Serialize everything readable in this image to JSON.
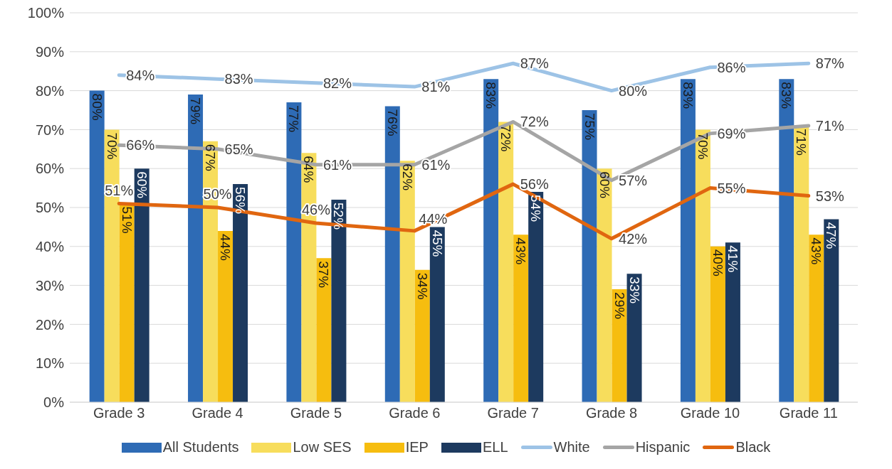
{
  "chart_data": {
    "type": "bar",
    "categories": [
      "Grade 3",
      "Grade 4",
      "Grade 5",
      "Grade 6",
      "Grade 7",
      "Grade 8",
      "Grade 10",
      "Grade 11"
    ],
    "series": [
      {
        "name": "All Students",
        "color": "#2e6bb5",
        "values": [
          80,
          79,
          77,
          76,
          83,
          75,
          83,
          83
        ],
        "value_labels": [
          "80%",
          "79%",
          "77%",
          "76%",
          "83%",
          "75%",
          "83%",
          "83%"
        ]
      },
      {
        "name": "Low SES",
        "color": "#f7dd5c",
        "values": [
          70,
          67,
          64,
          62,
          72,
          60,
          70,
          71
        ],
        "value_labels": [
          "70%",
          "67%",
          "64%",
          "62%",
          "72%",
          "60%",
          "70%",
          "71%"
        ]
      },
      {
        "name": "IEP",
        "color": "#f6bd0f",
        "values": [
          51,
          44,
          37,
          34,
          43,
          29,
          40,
          43
        ],
        "value_labels": [
          "51%",
          "44%",
          "37%",
          "34%",
          "43%",
          "29%",
          "40%",
          "43%"
        ]
      },
      {
        "name": "ELL",
        "color": "#1d3a5f",
        "values": [
          60,
          56,
          52,
          45,
          54,
          33,
          41,
          47
        ],
        "value_labels": [
          "60%",
          "56%",
          "52%",
          "45%",
          "54%",
          "33%",
          "41%",
          "47%"
        ]
      },
      {
        "name": "White",
        "type": "line",
        "color": "#9dc3e6",
        "values": [
          84,
          83,
          82,
          81,
          87,
          80,
          86,
          87
        ],
        "value_labels": [
          "84%",
          "83%",
          "82%",
          "81%",
          "87%",
          "80%",
          "86%",
          "87%"
        ]
      },
      {
        "name": "Hispanic",
        "type": "line",
        "color": "#a5a5a5",
        "values": [
          66,
          65,
          61,
          61,
          72,
          57,
          69,
          71
        ],
        "value_labels": [
          "66%",
          "65%",
          "61%",
          "61%",
          "72%",
          "57%",
          "69%",
          "71%"
        ]
      },
      {
        "name": "Black",
        "type": "line",
        "color": "#e06610",
        "values": [
          51,
          50,
          46,
          44,
          56,
          42,
          55,
          53
        ],
        "value_labels": [
          "51%",
          "50%",
          "46%",
          "44%",
          "56%",
          "42%",
          "55%",
          "53%"
        ]
      }
    ],
    "ylim": [
      0,
      100
    ],
    "yticks": [
      {
        "value": 0,
        "label": "0%"
      },
      {
        "value": 10,
        "label": "10%"
      },
      {
        "value": 20,
        "label": "20%"
      },
      {
        "value": 30,
        "label": "30%"
      },
      {
        "value": 40,
        "label": "40%"
      },
      {
        "value": 50,
        "label": "50%"
      },
      {
        "value": 60,
        "label": "60%"
      },
      {
        "value": 70,
        "label": "70%"
      },
      {
        "value": 80,
        "label": "80%"
      },
      {
        "value": 90,
        "label": "90%"
      },
      {
        "value": 100,
        "label": "100%"
      }
    ],
    "grid": "y",
    "legend": "bottom",
    "marker": "none",
    "line_style": "solid"
  }
}
